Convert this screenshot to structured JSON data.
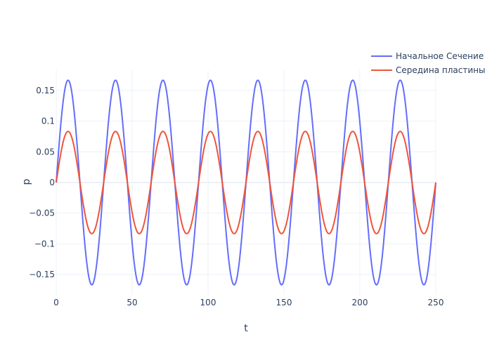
{
  "chart_data": {
    "type": "line",
    "title": "",
    "xlabel": "t",
    "ylabel": "p",
    "xlim": [
      0,
      250
    ],
    "ylim": [
      -0.183,
      0.183
    ],
    "x_ticks": [
      0,
      50,
      100,
      150,
      200,
      250
    ],
    "x_tick_labels": [
      "0",
      "50",
      "100",
      "150",
      "200",
      "250"
    ],
    "y_ticks": [
      -0.15,
      -0.1,
      -0.05,
      0,
      0.05,
      0.1,
      0.15
    ],
    "y_tick_labels": [
      "−0.15",
      "−0.1",
      "−0.05",
      "0",
      "0.05",
      "0.1",
      "0.15"
    ],
    "grid": true,
    "legend_position": "top-right",
    "series": [
      {
        "name": "Начальное Сечение",
        "color": "#636efa",
        "amplitude": 0.1667,
        "period": 31.25,
        "t_start": 0,
        "t_end": 250
      },
      {
        "name": "Середина пластины",
        "color": "#ef553b",
        "amplitude": 0.0833,
        "period": 31.25,
        "t_start": 0,
        "t_end": 250
      }
    ]
  }
}
